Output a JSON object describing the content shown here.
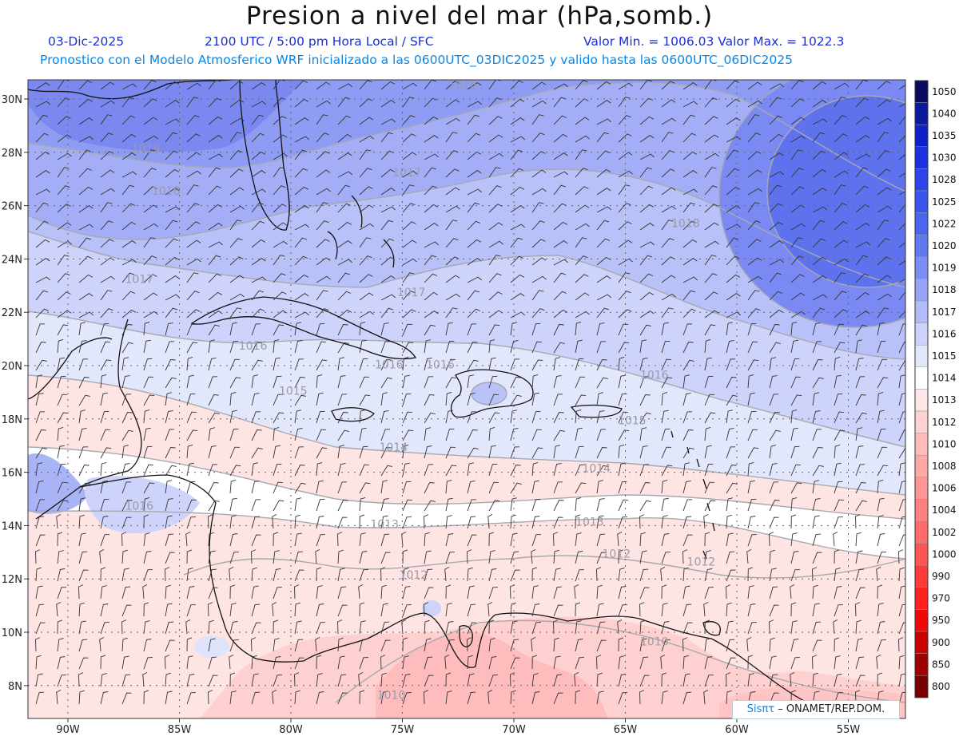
{
  "title": "Presion a nivel del mar (hPa,somb.)",
  "date": "03-Dic-2025",
  "time": "2100 UTC / 5:00 pm Hora Local / SFC",
  "min_max": "Valor Min. = 1006.03  Valor Max. = 1022.3",
  "model_info": "Pronostico con el Modelo Atmosferico WRF inicializado a las 0600UTC_03DIC2025 y valido hasta las  0600UTC_06DIC2025",
  "credit": {
    "logo": "Sisπτ",
    "text": " –  ONAMET/REP.DOM."
  },
  "lat_labels": [
    "30N",
    "28N",
    "26N",
    "24N",
    "22N",
    "20N",
    "18N",
    "16N",
    "14N",
    "12N",
    "10N",
    "8N"
  ],
  "lon_labels": [
    "90W",
    "85W",
    "80W",
    "75W",
    "70W",
    "65W",
    "60W",
    "55W"
  ],
  "colorbar": {
    "labels": [
      "1050",
      "1040",
      "1035",
      "1030",
      "1028",
      "1025",
      "1022",
      "1020",
      "1019",
      "1018",
      "1017",
      "1016",
      "1015",
      "1014",
      "1013",
      "1012",
      "1010",
      "1008",
      "1006",
      "1004",
      "1002",
      "1000",
      "990",
      "970",
      "950",
      "900",
      "850",
      "800"
    ],
    "colors": [
      "#0a0a5e",
      "#0c1aa0",
      "#1020c8",
      "#1b30e0",
      "#2c45ea",
      "#3a55ef",
      "#4a66f0",
      "#5f78f2",
      "#7b8ef4",
      "#97a4f6",
      "#b3bcf8",
      "#cdd3fa",
      "#e3e7fc",
      "#ffffff",
      "#ffe6e6",
      "#ffd2d2",
      "#ffbcbc",
      "#ffa8a8",
      "#ff9696",
      "#ff8080",
      "#ff6a6a",
      "#ff5454",
      "#ff3a3a",
      "#ff2020",
      "#f00808",
      "#c80000",
      "#a00000",
      "#780000"
    ]
  },
  "contour_labels": [
    {
      "text": "1016",
      "lon": -72.3,
      "lat": 30.4
    },
    {
      "text": "1019",
      "lon": -86.5,
      "lat": 28.0
    },
    {
      "text": "1018",
      "lon": -85.6,
      "lat": 26.4
    },
    {
      "text": "1017",
      "lon": -74.8,
      "lat": 27.1
    },
    {
      "text": "1018",
      "lon": -62.3,
      "lat": 25.2
    },
    {
      "text": "1017",
      "lon": -86.8,
      "lat": 23.1
    },
    {
      "text": "1017",
      "lon": -74.6,
      "lat": 22.6
    },
    {
      "text": "1016",
      "lon": -81.7,
      "lat": 20.6
    },
    {
      "text": "1016",
      "lon": -75.6,
      "lat": 19.9
    },
    {
      "text": "1016",
      "lon": -73.3,
      "lat": 19.9
    },
    {
      "text": "1016",
      "lon": -63.7,
      "lat": 19.5
    },
    {
      "text": "1015",
      "lon": -79.9,
      "lat": 18.9
    },
    {
      "text": "1015",
      "lon": -64.7,
      "lat": 17.8
    },
    {
      "text": "1014",
      "lon": -75.4,
      "lat": 16.8
    },
    {
      "text": "1014",
      "lon": -66.3,
      "lat": 16.0
    },
    {
      "text": "1016",
      "lon": -86.8,
      "lat": 14.6
    },
    {
      "text": "1013",
      "lon": -75.8,
      "lat": 13.9
    },
    {
      "text": "1013",
      "lon": -66.6,
      "lat": 14.0
    },
    {
      "text": "1012",
      "lon": -65.4,
      "lat": 12.8
    },
    {
      "text": "1012",
      "lon": -61.6,
      "lat": 12.5
    },
    {
      "text": "1012",
      "lon": -74.5,
      "lat": 12.0
    },
    {
      "text": "1010",
      "lon": -63.7,
      "lat": 9.5
    },
    {
      "text": "1010",
      "lon": -75.5,
      "lat": 7.5
    }
  ]
}
